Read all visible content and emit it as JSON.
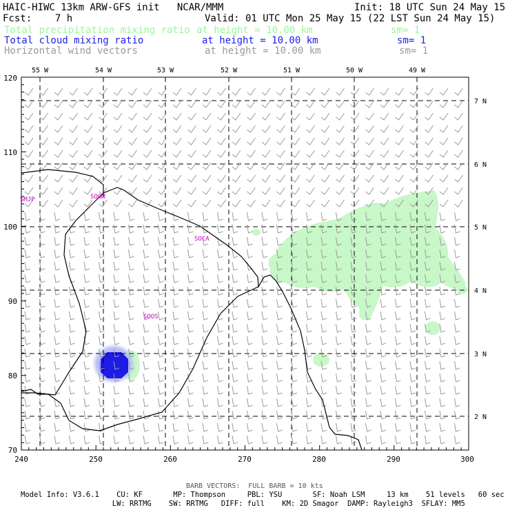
{
  "header": {
    "title": "HAIC-HIWC 13km ARW-GFS init   NCAR/MMM",
    "init": "Init: 18 UTC Sun 24 May 15",
    "fcst": "Fcst:    7 h",
    "valid": "Valid: 01 UTC Mon 25 May 15 (22 LST Sun 24 May 15)"
  },
  "fields": [
    {
      "name": "Total precipitation mixing ratio",
      "height": "at height = 10.00 km",
      "sm": "sm= 1",
      "color": "#9cf59c"
    },
    {
      "name": "Total cloud mixing ratio",
      "height": "at height = 10.00 km",
      "sm": "sm= 1",
      "color": "#1c1ce6"
    },
    {
      "name": "Horizontal wind vectors",
      "height": "at height = 10.00 km",
      "sm": "sm= 1",
      "color": "#9a9a9a"
    }
  ],
  "map": {
    "x_ticks": [
      "240",
      "250",
      "260",
      "270",
      "280",
      "290",
      "300"
    ],
    "y_ticks": [
      "70",
      "80",
      "90",
      "100",
      "110",
      "120"
    ],
    "lon_labels": [
      "55 W",
      "54 W",
      "53 W",
      "52 W",
      "51 W",
      "50 W",
      "49 W"
    ],
    "lat_labels": [
      "2 N",
      "3 N",
      "4 N",
      "5 N",
      "6 N",
      "7 N"
    ],
    "stations": [
      "SMJP",
      "SOGM",
      "SOCA",
      "SOOS"
    ],
    "station_color": "#c000c0"
  },
  "footer": {
    "barb": "BARB VECTORS:  FULL BARB = 10 kts",
    "model_line1": "Model Info: V3.6.1    CU: KF       MP: Thompson     PBL: YSU       SF: Noah LSM     13 km    51 levels   60 sec",
    "model_line2": "                     LW: RRTMG    SW: RRTMG   DIFF: full    KM: 2D Smagor  DAMP: Rayleigh3  SFLAY: MM5"
  }
}
